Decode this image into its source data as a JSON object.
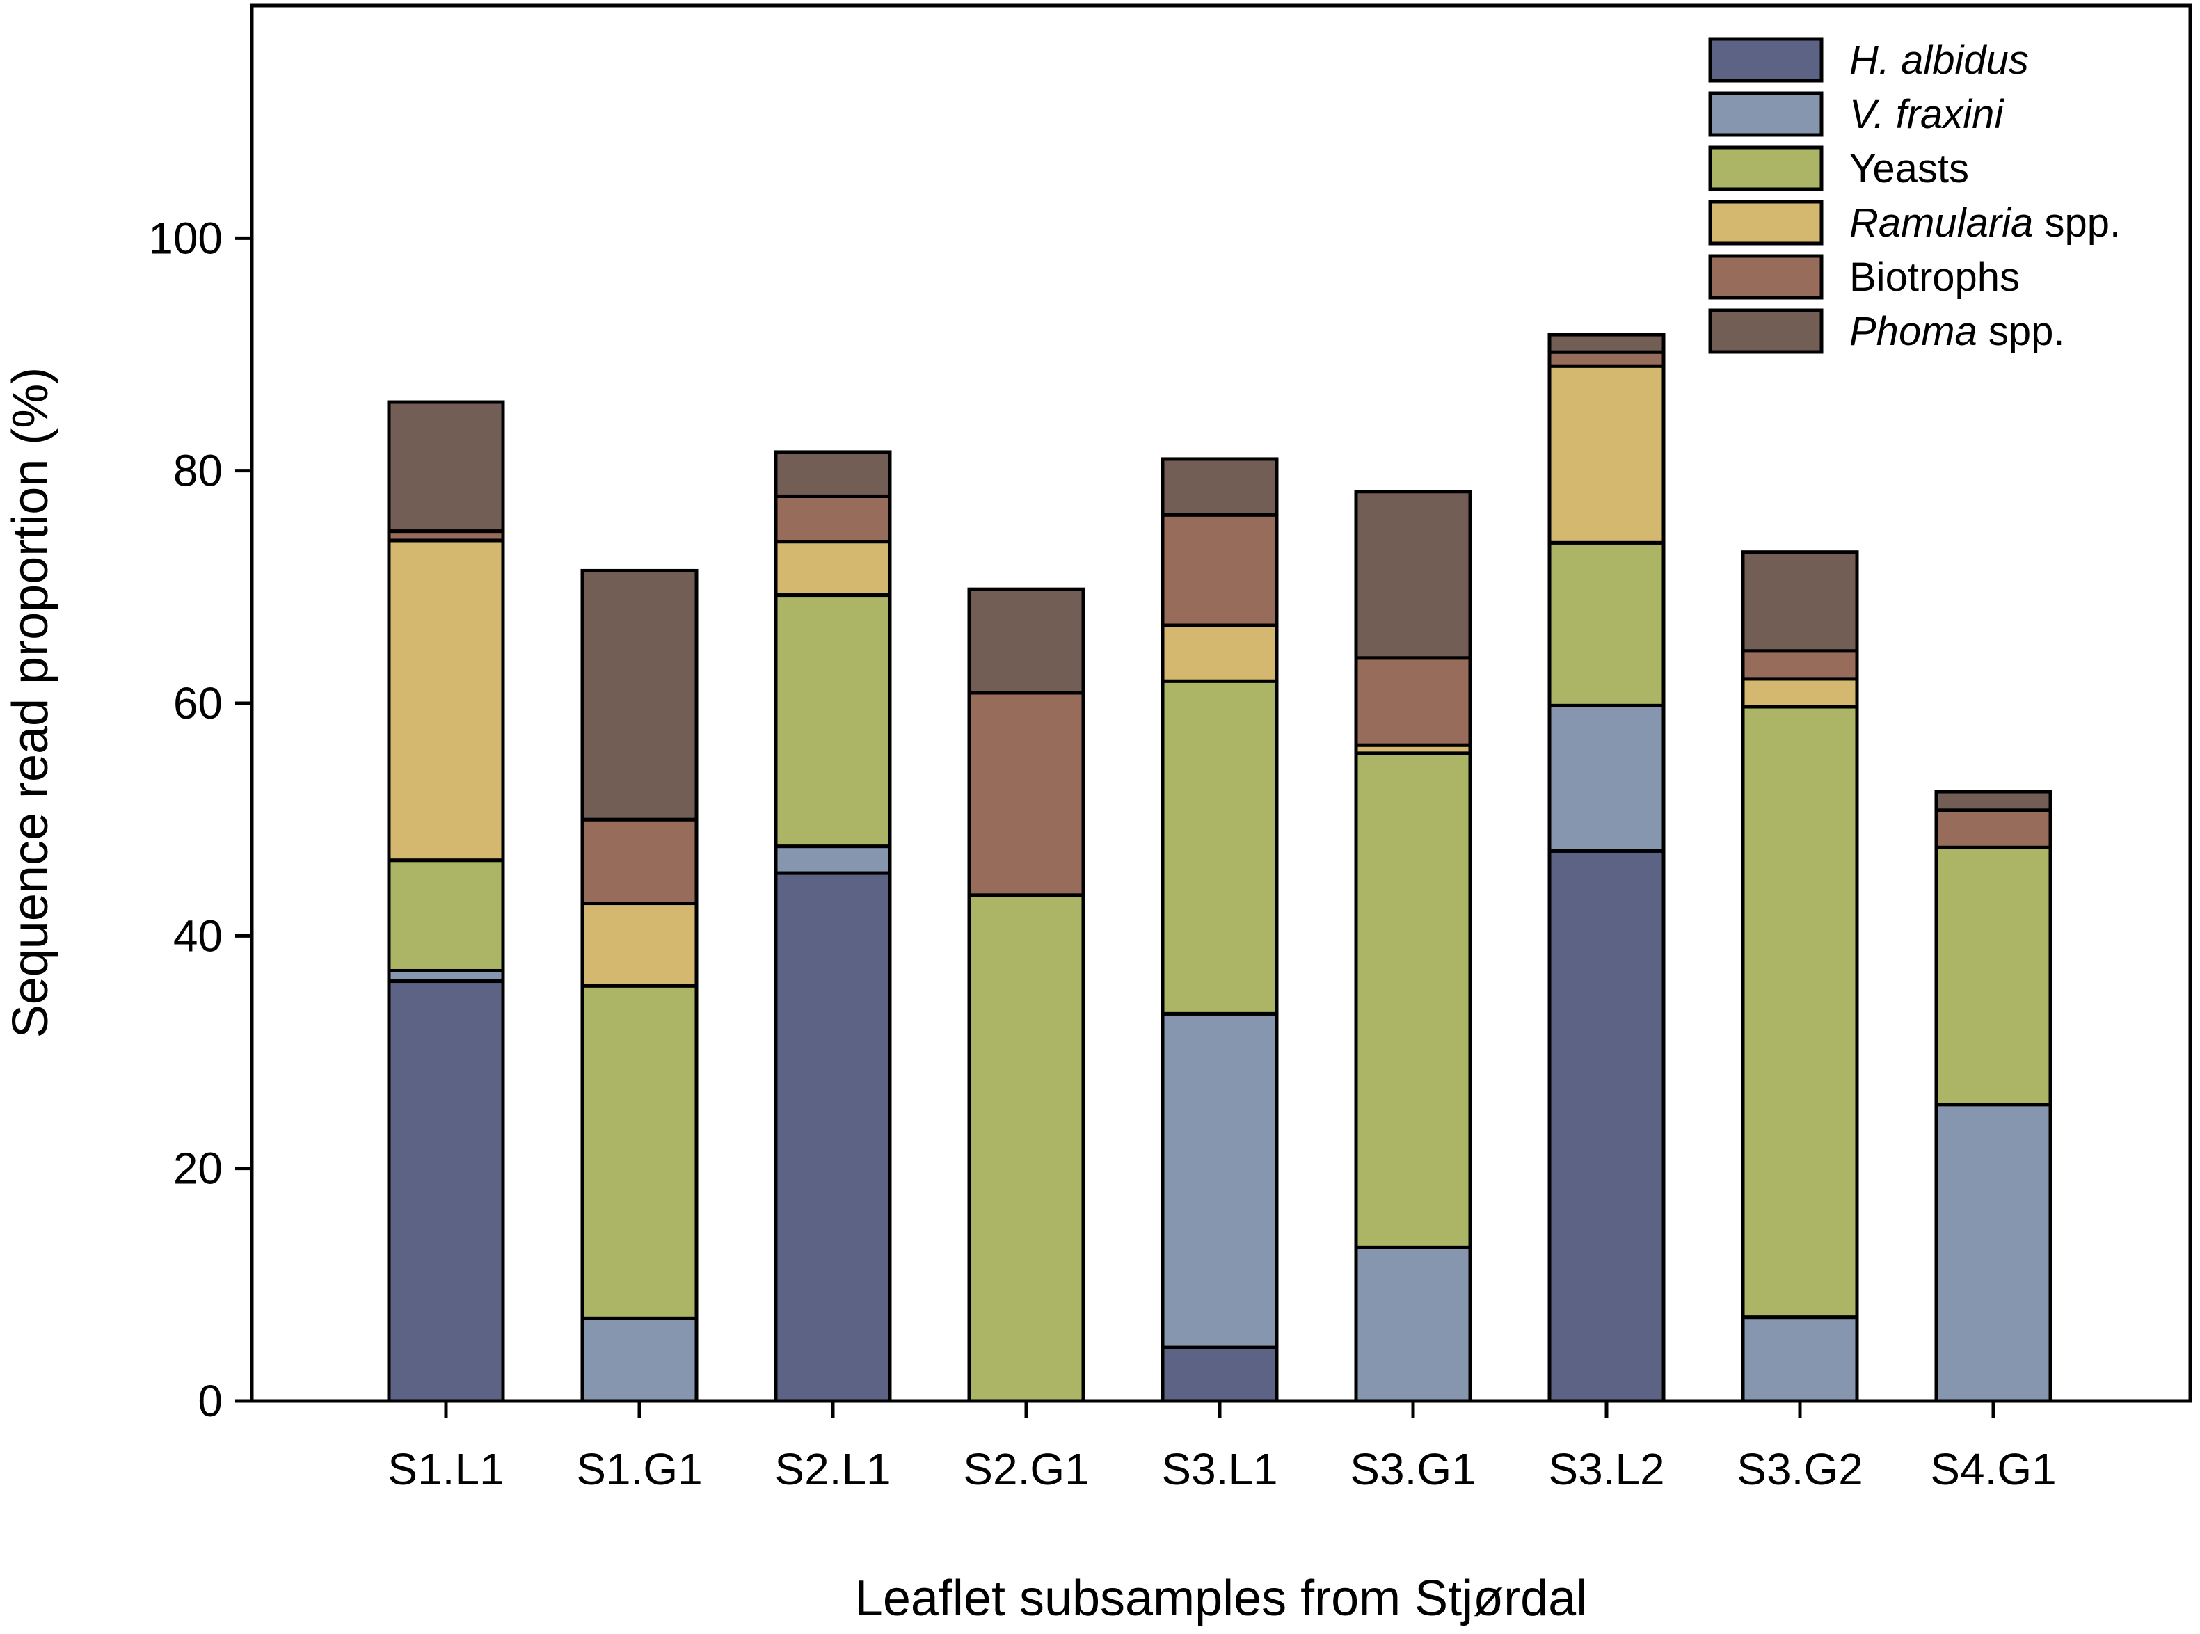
{
  "chart_data": {
    "type": "bar",
    "stacked": true,
    "title": "",
    "xlabel": "Leaflet subsamples from Stjørdal",
    "ylabel": "Sequence read proportion (%)",
    "ylim": [
      0,
      120
    ],
    "yticks": [
      0,
      20,
      40,
      60,
      80,
      100
    ],
    "grid": false,
    "legend_position": "top-right",
    "categories": [
      "S1.L1",
      "S1.G1",
      "S2.L1",
      "S2.G1",
      "S3.L1",
      "S3.G1",
      "S3.L2",
      "S3.G2",
      "S4.G1"
    ],
    "series": [
      {
        "name": "H. albidus",
        "italic": "H. albidus",
        "suffix": "",
        "color": "#5c6384",
        "values": [
          36.1,
          0,
          45.4,
          0,
          4.6,
          0,
          47.3,
          0,
          0
        ]
      },
      {
        "name": "V. fraxini",
        "italic": "V. fraxini",
        "suffix": "",
        "color": "#8696ae",
        "values": [
          0.9,
          7.1,
          2.3,
          0,
          28.7,
          13.2,
          12.5,
          7.2,
          25.5
        ]
      },
      {
        "name": "Yeasts",
        "italic": "",
        "suffix": "Yeasts",
        "color": "#abb565",
        "values": [
          9.5,
          28.6,
          21.6,
          43.5,
          28.6,
          42.5,
          14.0,
          52.5,
          22.1
        ]
      },
      {
        "name": "Ramularia spp.",
        "italic": "Ramularia",
        "suffix": " spp.",
        "color": "#d5b86f",
        "values": [
          27.5,
          7.1,
          4.6,
          0,
          4.8,
          0.7,
          15.2,
          2.4,
          0
        ]
      },
      {
        "name": "Biotrophs",
        "italic": "",
        "suffix": "Biotrophs",
        "color": "#986c5b",
        "values": [
          0.8,
          7.2,
          3.9,
          17.4,
          9.5,
          7.5,
          1.2,
          2.4,
          3.2
        ]
      },
      {
        "name": "Phoma spp.",
        "italic": "Phoma",
        "suffix": " spp.",
        "color": "#735e55",
        "values": [
          11.1,
          21.4,
          3.8,
          8.9,
          4.8,
          14.3,
          1.5,
          8.5,
          1.6
        ]
      }
    ]
  }
}
